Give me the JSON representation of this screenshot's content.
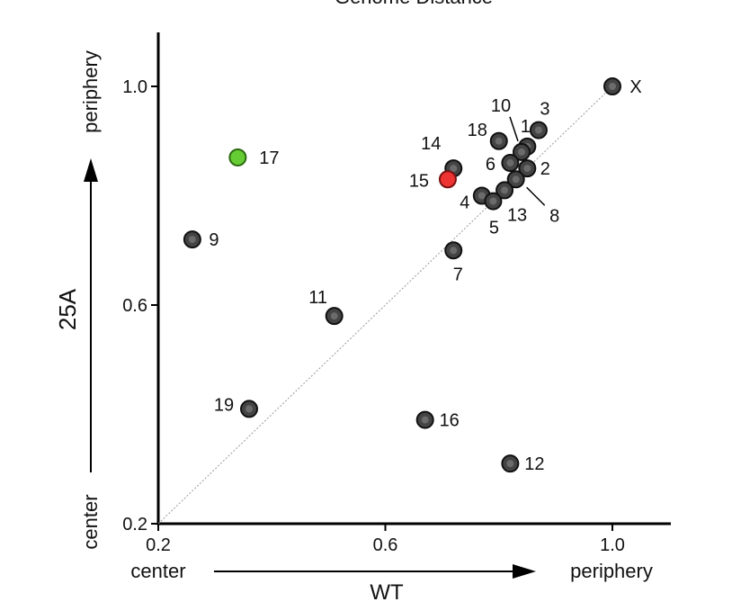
{
  "chart_data": {
    "type": "scatter",
    "title": "Genome Distance",
    "xlabel": "WT",
    "ylabel": "25A",
    "x_end_labels": {
      "low": "center",
      "high": "periphery"
    },
    "y_end_labels": {
      "low": "center",
      "high": "periphery"
    },
    "xlim": [
      0.2,
      1.1
    ],
    "ylim": [
      0.2,
      1.1
    ],
    "xticks": [
      {
        "value": 0.2,
        "label": "0.2"
      },
      {
        "value": 0.6,
        "label": "0.6"
      },
      {
        "value": 1.0,
        "label": "1.0"
      }
    ],
    "yticks": [
      {
        "value": 0.2,
        "label": "0.2"
      },
      {
        "value": 0.6,
        "label": "0.6"
      },
      {
        "value": 1.0,
        "label": "1.0"
      }
    ],
    "diagonal": true,
    "grid": false,
    "colors": {
      "default": "#444444",
      "default_edge": "#111111",
      "inner": "#6b6b6b",
      "highlight_green": "#66cc33",
      "highlight_red": "#ee3333"
    },
    "points": [
      {
        "label": "X",
        "x": 1.0,
        "y": 1.0,
        "color": "default"
      },
      {
        "label": "3",
        "x": 0.87,
        "y": 0.92,
        "color": "default"
      },
      {
        "label": "1",
        "x": 0.85,
        "y": 0.89,
        "color": "default"
      },
      {
        "label": "10",
        "x": 0.84,
        "y": 0.88,
        "color": "default"
      },
      {
        "label": "18",
        "x": 0.8,
        "y": 0.9,
        "color": "default"
      },
      {
        "label": "6",
        "x": 0.82,
        "y": 0.86,
        "color": "default"
      },
      {
        "label": "2",
        "x": 0.85,
        "y": 0.85,
        "color": "default"
      },
      {
        "label": "8",
        "x": 0.83,
        "y": 0.83,
        "color": "default"
      },
      {
        "label": "13",
        "x": 0.81,
        "y": 0.81,
        "color": "default"
      },
      {
        "label": "14",
        "x": 0.72,
        "y": 0.85,
        "color": "default"
      },
      {
        "label": "15",
        "x": 0.71,
        "y": 0.83,
        "color": "highlight_red"
      },
      {
        "label": "4",
        "x": 0.77,
        "y": 0.8,
        "color": "default"
      },
      {
        "label": "5",
        "x": 0.79,
        "y": 0.79,
        "color": "default"
      },
      {
        "label": "7",
        "x": 0.72,
        "y": 0.7,
        "color": "default"
      },
      {
        "label": "17",
        "x": 0.34,
        "y": 0.87,
        "color": "highlight_green"
      },
      {
        "label": "9",
        "x": 0.26,
        "y": 0.72,
        "color": "default"
      },
      {
        "label": "11",
        "x": 0.51,
        "y": 0.58,
        "color": "default"
      },
      {
        "label": "19",
        "x": 0.36,
        "y": 0.41,
        "color": "default"
      },
      {
        "label": "16",
        "x": 0.67,
        "y": 0.39,
        "color": "default"
      },
      {
        "label": "12",
        "x": 0.82,
        "y": 0.31,
        "color": "default"
      }
    ]
  }
}
